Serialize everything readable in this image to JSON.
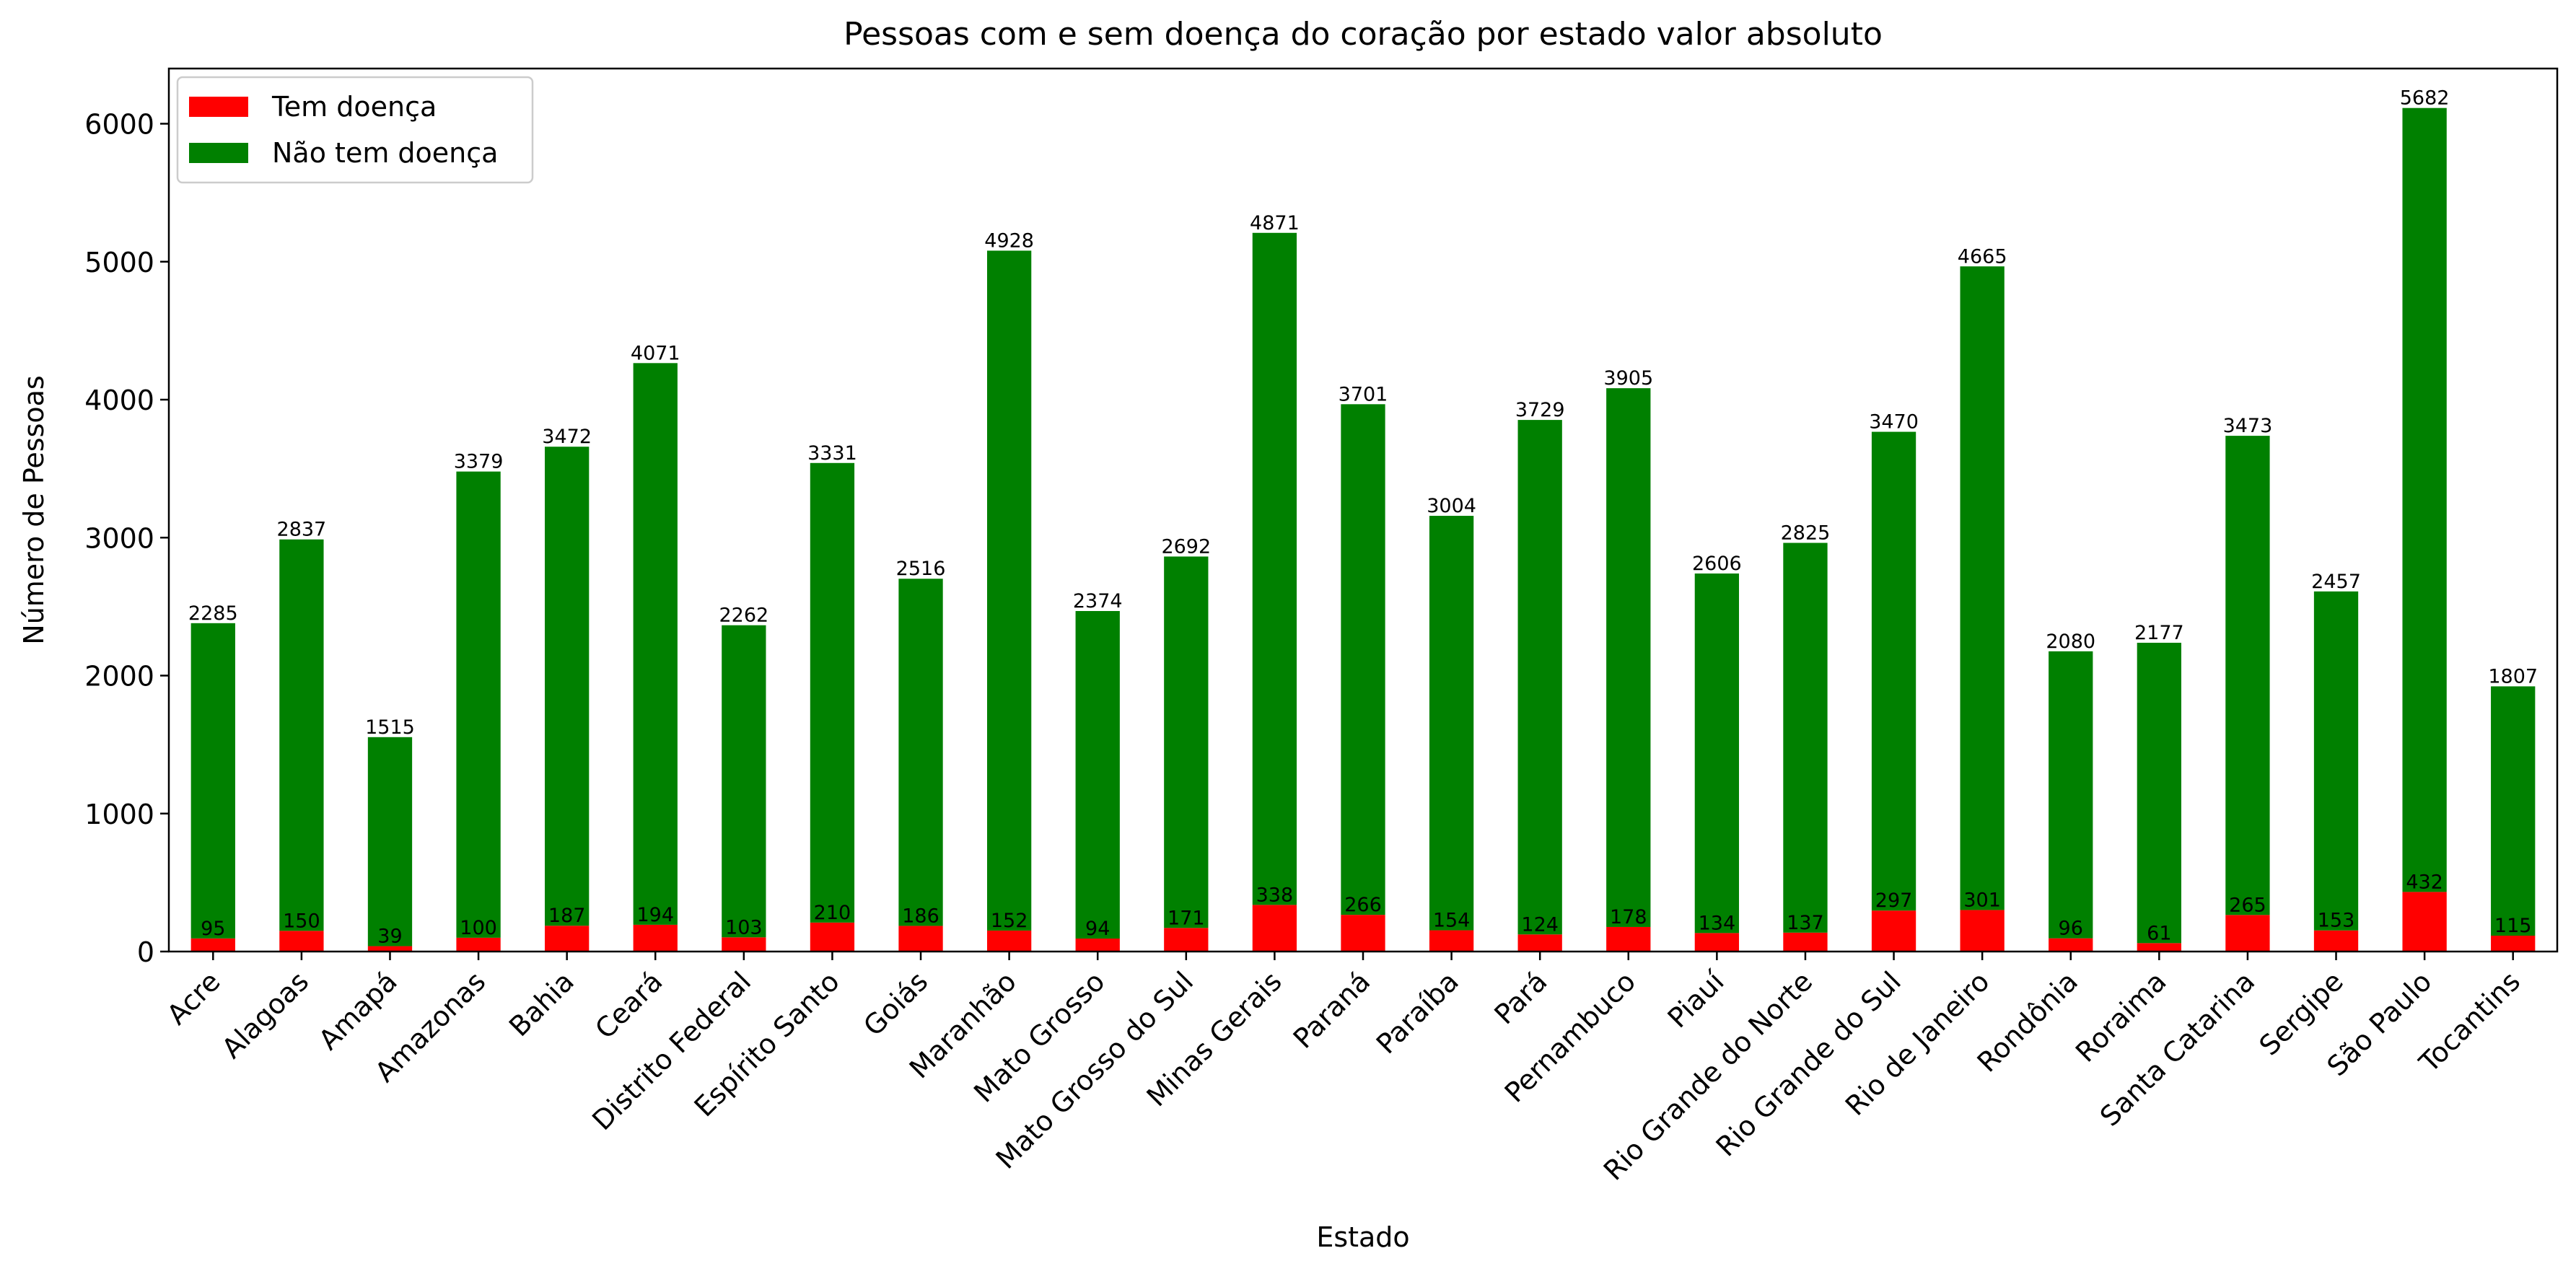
{
  "chart_data": {
    "type": "bar",
    "stacked": true,
    "title": "Pessoas com e sem doença do coração por estado valor absoluto",
    "xlabel": "Estado",
    "ylabel": "Número de Pessoas",
    "ylim": [
      0,
      6400
    ],
    "yticks": [
      0,
      1000,
      2000,
      3000,
      4000,
      5000,
      6000
    ],
    "grid": false,
    "legend_position": "top-left",
    "categories": [
      "Acre",
      "Alagoas",
      "Amapá",
      "Amazonas",
      "Bahia",
      "Ceará",
      "Distrito Federal",
      "Espírito Santo",
      "Goiás",
      "Maranhão",
      "Mato Grosso",
      "Mato Grosso do Sul",
      "Minas Gerais",
      "Paraná",
      "Paraíba",
      "Pará",
      "Pernambuco",
      "Piauí",
      "Rio Grande do Norte",
      "Rio Grande do Sul",
      "Rio de Janeiro",
      "Rondônia",
      "Roraima",
      "Santa Catarina",
      "Sergipe",
      "São Paulo",
      "Tocantins"
    ],
    "series": [
      {
        "name": "Tem doença",
        "color": "#ff0000",
        "values": [
          95,
          150,
          39,
          100,
          187,
          194,
          103,
          210,
          186,
          152,
          94,
          171,
          338,
          266,
          154,
          124,
          178,
          134,
          137,
          297,
          301,
          96,
          61,
          265,
          153,
          432,
          115
        ]
      },
      {
        "name": "Não tem doença",
        "color": "#008000",
        "values": [
          2285,
          2837,
          1515,
          3379,
          3472,
          4071,
          2262,
          3331,
          2516,
          4928,
          2374,
          2692,
          4871,
          3701,
          3004,
          3729,
          3905,
          2606,
          2825,
          3470,
          4665,
          2080,
          2177,
          3473,
          2457,
          5682,
          1807
        ]
      }
    ]
  }
}
